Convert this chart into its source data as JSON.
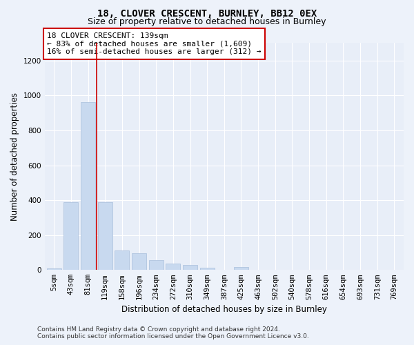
{
  "title": "18, CLOVER CRESCENT, BURNLEY, BB12 0EX",
  "subtitle": "Size of property relative to detached houses in Burnley",
  "xlabel": "Distribution of detached houses by size in Burnley",
  "ylabel": "Number of detached properties",
  "bar_color": "#c8d9ef",
  "bar_edgecolor": "#a8bedc",
  "background_color": "#e8eef8",
  "grid_color": "#ffffff",
  "fig_bg_color": "#edf2fa",
  "categories": [
    "5sqm",
    "43sqm",
    "81sqm",
    "119sqm",
    "158sqm",
    "196sqm",
    "234sqm",
    "272sqm",
    "310sqm",
    "349sqm",
    "387sqm",
    "425sqm",
    "463sqm",
    "502sqm",
    "540sqm",
    "578sqm",
    "616sqm",
    "654sqm",
    "693sqm",
    "731sqm",
    "769sqm"
  ],
  "values": [
    10,
    390,
    960,
    390,
    110,
    95,
    55,
    38,
    28,
    14,
    0,
    18,
    0,
    0,
    0,
    0,
    0,
    0,
    0,
    0,
    0
  ],
  "ylim": [
    0,
    1300
  ],
  "yticks": [
    0,
    200,
    400,
    600,
    800,
    1000,
    1200
  ],
  "property_line_idx": 2.5,
  "annotation_text": "18 CLOVER CRESCENT: 139sqm\n← 83% of detached houses are smaller (1,609)\n16% of semi-detached houses are larger (312) →",
  "annotation_box_facecolor": "#ffffff",
  "annotation_box_edgecolor": "#cc0000",
  "footer_text": "Contains HM Land Registry data © Crown copyright and database right 2024.\nContains public sector information licensed under the Open Government Licence v3.0.",
  "title_fontsize": 10,
  "subtitle_fontsize": 9,
  "xlabel_fontsize": 8.5,
  "ylabel_fontsize": 8.5,
  "tick_fontsize": 7.5,
  "annotation_fontsize": 8,
  "footer_fontsize": 6.5
}
